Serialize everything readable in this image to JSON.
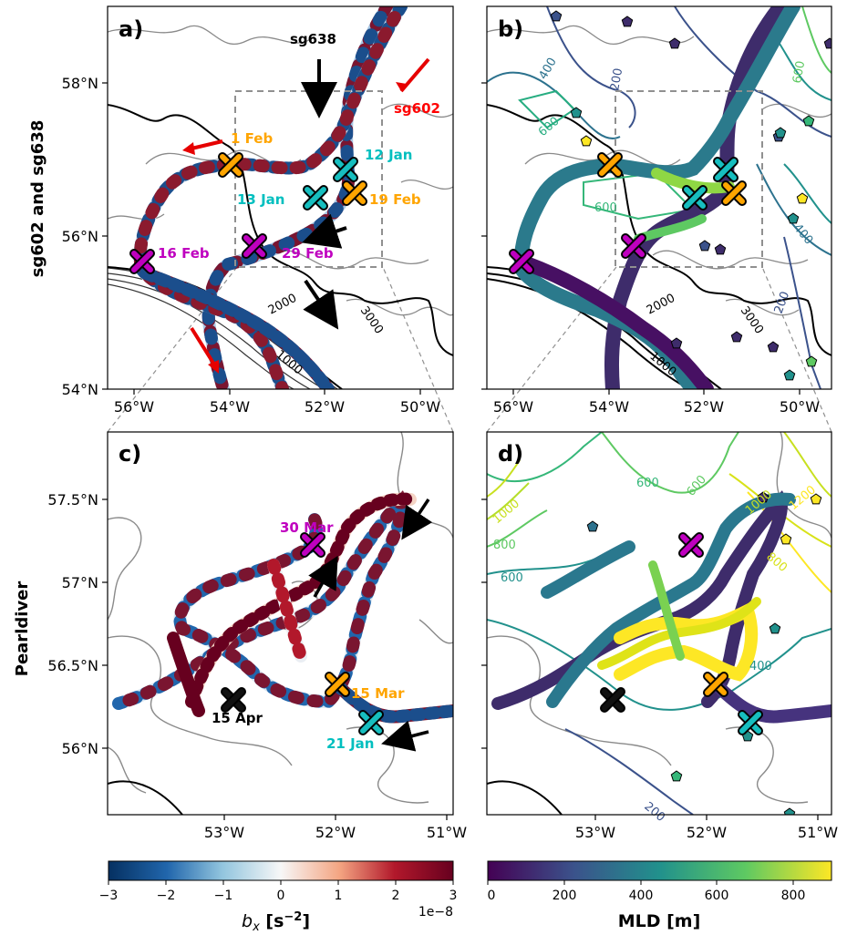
{
  "panels": {
    "a": {
      "label": "a)"
    },
    "b": {
      "label": "b)"
    },
    "c": {
      "label": "c)"
    },
    "d": {
      "label": "d)"
    }
  },
  "y_labels": {
    "top": "sg602 and sg638",
    "bottom": "Pearldiver"
  },
  "ticks": {
    "top_lon": [
      "56°W",
      "54°W",
      "52°W",
      "50°W"
    ],
    "top_lat": [
      "54°N",
      "56°N",
      "58°N"
    ],
    "bottom_lon": [
      "53°W",
      "52°W",
      "51°W"
    ],
    "bottom_lat": [
      "56°N",
      "56.5°N",
      "57°N",
      "57.5°N"
    ]
  },
  "annotations": {
    "a": [
      {
        "text": "sg638",
        "color": "#000000"
      },
      {
        "text": "sg602",
        "color": "#ff0000"
      },
      {
        "text": "1 Feb",
        "color": "#ffa500"
      },
      {
        "text": "12 Jan",
        "color": "#00bfbf"
      },
      {
        "text": "13 Jan",
        "color": "#00bfbf"
      },
      {
        "text": "19 Feb",
        "color": "#ffa500"
      },
      {
        "text": "16 Feb",
        "color": "#bf00bf"
      },
      {
        "text": "29 Feb",
        "color": "#bf00bf"
      }
    ],
    "c": [
      {
        "text": "30 Mar",
        "color": "#bf00bf"
      },
      {
        "text": "15 Mar",
        "color": "#ffa500"
      },
      {
        "text": "15 Apr",
        "color": "#000000"
      },
      {
        "text": "21 Jan",
        "color": "#00bfbf"
      }
    ]
  },
  "contour_labels": {
    "a": [
      "2000",
      "3000",
      "1000"
    ],
    "b": [
      "400",
      "600",
      "200",
      "600",
      "600",
      "400",
      "200",
      "2000",
      "1000",
      "3000"
    ],
    "d": [
      "600",
      "600",
      "1000",
      "800",
      "600",
      "400",
      "200",
      "800",
      "1000",
      "1200"
    ]
  },
  "colorbars": {
    "bx": {
      "title": "b",
      "title_sub": "x",
      "title_unit": " [s",
      "title_exp": "−2",
      "title_end": "]",
      "ticks": [
        "−3",
        "−2",
        "−1",
        "0",
        "1",
        "2",
        "3"
      ],
      "multiplier": "1e−8",
      "range": [
        -3,
        3
      ],
      "colormap": "RdBu_r"
    },
    "mld": {
      "title": "MLD [m]",
      "ticks": [
        "0",
        "200",
        "400",
        "600",
        "800"
      ],
      "range": [
        0,
        900
      ],
      "colormap": "viridis"
    }
  },
  "colors": {
    "track_red": "#67001f",
    "track_blue": "#053061",
    "marker_orange": "#ffa500",
    "marker_cyan": "#17bebf",
    "marker_magenta": "#bf00bf",
    "bathy_gray": "#808080"
  }
}
